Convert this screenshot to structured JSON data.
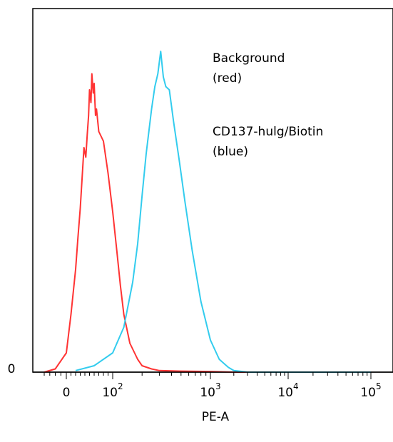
{
  "chart_data": {
    "type": "line",
    "title": "",
    "xlabel": "PE-A",
    "ylabel": "",
    "x_scale": "biexponential",
    "xlim": [
      -40,
      100000
    ],
    "ylim": [
      0,
      100
    ],
    "y_tick_labels": [
      "0"
    ],
    "x_tick_labels": [
      {
        "base": "0",
        "exp": ""
      },
      {
        "base": "10",
        "exp": "2"
      },
      {
        "base": "10",
        "exp": "3"
      },
      {
        "base": "10",
        "exp": "4"
      },
      {
        "base": "10",
        "exp": "5"
      }
    ],
    "annotations": [
      "Background",
      "(red)",
      "CD137-hulg/Biotin",
      "(blue)"
    ],
    "series": [
      {
        "color": "#ff3333",
        "x": [
          -40,
          -20,
          0,
          10,
          20,
          25,
          30,
          35,
          38,
          42,
          45,
          48,
          50,
          53,
          55,
          58,
          60,
          63,
          65,
          70,
          80,
          90,
          100,
          110,
          120,
          130,
          150,
          180,
          200,
          250,
          300,
          500,
          1000,
          2000,
          100000
        ],
        "y": [
          0,
          1,
          6,
          18,
          32,
          42,
          51,
          63,
          70,
          67,
          74,
          80,
          88,
          84,
          93,
          87,
          90,
          80,
          82,
          75,
          72,
          62,
          50,
          38,
          27,
          18,
          9,
          4,
          2,
          1,
          0.5,
          0.3,
          0.2,
          0,
          0
        ]
      },
      {
        "color": "#33ccee",
        "x": [
          20,
          60,
          100,
          130,
          160,
          180,
          200,
          220,
          250,
          270,
          290,
          310,
          330,
          350,
          380,
          420,
          480,
          550,
          650,
          800,
          1000,
          1300,
          1700,
          2000,
          3000,
          100000
        ],
        "y": [
          0.5,
          2,
          6,
          14,
          28,
          40,
          55,
          68,
          82,
          89,
          93,
          100,
          92,
          89,
          88,
          78,
          66,
          53,
          38,
          22,
          10,
          4,
          1.5,
          0.5,
          0,
          0
        ]
      }
    ]
  }
}
